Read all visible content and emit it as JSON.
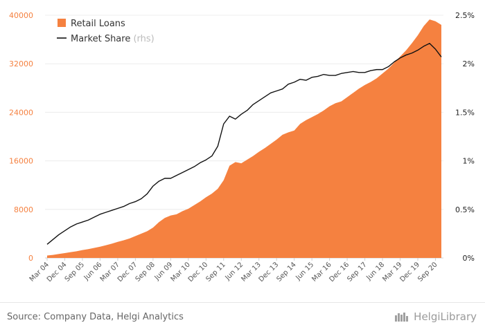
{
  "footer": {
    "source": "Source: Company Data, Helgi Analytics",
    "brand": "HelgiLibrary"
  },
  "chart_data": {
    "type": "area",
    "legend": {
      "placement": "top-left"
    },
    "grid": {
      "horizontal": true,
      "vertical": false
    },
    "colors": {
      "area": "#f58140",
      "line": "#111111",
      "left_axis": "#f58140",
      "right_axis": "#222222"
    },
    "x_tick_labels": [
      "Mar 04",
      "Dec 04",
      "Sep 05",
      "Jun 06",
      "Mar 07",
      "Dec 07",
      "Sep 08",
      "Jun 09",
      "Mar 10",
      "Dec 10",
      "Sep 11",
      "Jun 12",
      "Mar 13",
      "Dec 13",
      "Sep 14",
      "Jun 15",
      "Mar 16",
      "Dec 16",
      "Sep 17",
      "Jun 18",
      "Mar 19",
      "Dec 19",
      "Sep 20"
    ],
    "y_left": {
      "ticks": [
        0,
        8000,
        16000,
        24000,
        32000,
        40000
      ],
      "tick_labels": [
        "0",
        "8000",
        "16000",
        "24000",
        "32000",
        "40000"
      ],
      "range": [
        0,
        40000
      ]
    },
    "y_right": {
      "ticks": [
        0,
        0.5,
        1,
        1.5,
        2,
        2.5
      ],
      "tick_labels": [
        "0%",
        "0.5%",
        "1%",
        "1.5%",
        "2%",
        "2.5%"
      ],
      "range": [
        0,
        2.5
      ]
    },
    "x": [
      "Mar 04",
      "Jun 04",
      "Sep 04",
      "Dec 04",
      "Mar 05",
      "Jun 05",
      "Sep 05",
      "Dec 05",
      "Mar 06",
      "Jun 06",
      "Sep 06",
      "Dec 06",
      "Mar 07",
      "Jun 07",
      "Sep 07",
      "Dec 07",
      "Mar 08",
      "Jun 08",
      "Sep 08",
      "Dec 08",
      "Mar 09",
      "Jun 09",
      "Sep 09",
      "Dec 09",
      "Mar 10",
      "Jun 10",
      "Sep 10",
      "Dec 10",
      "Mar 11",
      "Jun 11",
      "Sep 11",
      "Dec 11",
      "Mar 12",
      "Jun 12",
      "Sep 12",
      "Dec 12",
      "Mar 13",
      "Jun 13",
      "Sep 13",
      "Dec 13",
      "Mar 14",
      "Jun 14",
      "Sep 14",
      "Dec 14",
      "Mar 15",
      "Jun 15",
      "Sep 15",
      "Dec 15",
      "Mar 16",
      "Jun 16",
      "Sep 16",
      "Dec 16",
      "Mar 17",
      "Jun 17",
      "Sep 17",
      "Dec 17",
      "Mar 18",
      "Jun 18",
      "Sep 18",
      "Dec 18",
      "Mar 19",
      "Jun 19",
      "Sep 19",
      "Dec 19",
      "Mar 20",
      "Jun 20",
      "Sep 20",
      "Dec 20"
    ],
    "series": [
      {
        "name": "Retail Loans",
        "axis": "left",
        "kind": "area",
        "values": [
          400,
          500,
          650,
          800,
          950,
          1100,
          1300,
          1450,
          1650,
          1850,
          2100,
          2350,
          2650,
          2900,
          3200,
          3600,
          4000,
          4400,
          5000,
          5900,
          6600,
          7000,
          7200,
          7700,
          8100,
          8700,
          9300,
          10000,
          10600,
          11400,
          12800,
          15200,
          15800,
          15600,
          16200,
          16800,
          17500,
          18100,
          18800,
          19500,
          20300,
          20700,
          21000,
          22100,
          22700,
          23200,
          23700,
          24300,
          25000,
          25500,
          25800,
          26500,
          27200,
          27900,
          28500,
          29000,
          29600,
          30400,
          31200,
          32200,
          33200,
          34200,
          35400,
          36700,
          38200,
          39300,
          39000,
          38400
        ]
      },
      {
        "name": "Market Share",
        "legend_suffix": "(rhs)",
        "axis": "right",
        "kind": "line",
        "values": [
          0.14,
          0.19,
          0.24,
          0.28,
          0.32,
          0.35,
          0.37,
          0.39,
          0.42,
          0.45,
          0.47,
          0.49,
          0.51,
          0.53,
          0.56,
          0.58,
          0.61,
          0.66,
          0.74,
          0.79,
          0.82,
          0.82,
          0.85,
          0.88,
          0.91,
          0.94,
          0.98,
          1.01,
          1.05,
          1.15,
          1.38,
          1.46,
          1.43,
          1.48,
          1.52,
          1.58,
          1.62,
          1.66,
          1.7,
          1.72,
          1.74,
          1.79,
          1.81,
          1.84,
          1.83,
          1.86,
          1.87,
          1.89,
          1.88,
          1.88,
          1.9,
          1.91,
          1.92,
          1.91,
          1.91,
          1.93,
          1.94,
          1.94,
          1.97,
          2.02,
          2.06,
          2.09,
          2.11,
          2.14,
          2.18,
          2.21,
          2.15,
          2.07
        ]
      }
    ]
  }
}
